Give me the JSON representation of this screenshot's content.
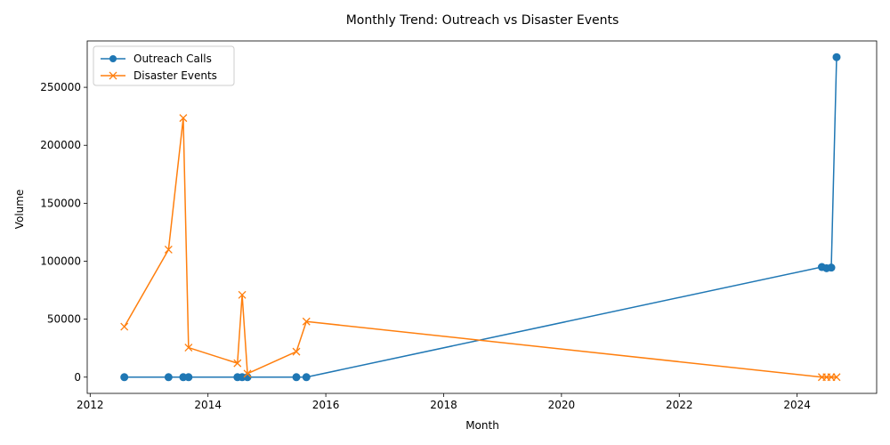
{
  "chart_data": {
    "type": "line",
    "title": "Monthly Trend: Outreach vs Disaster Events",
    "xlabel": "Month",
    "ylabel": "Volume",
    "xlim": [
      2011.95,
      2025.35
    ],
    "ylim": [
      -14000,
      290000
    ],
    "x_ticks": [
      2012,
      2014,
      2016,
      2018,
      2020,
      2022,
      2024
    ],
    "y_ticks": [
      0,
      50000,
      100000,
      150000,
      200000,
      250000
    ],
    "legend_position": "upper-left",
    "series": [
      {
        "name": "Outreach Calls",
        "color": "#1f77b4",
        "marker": "circle",
        "x": [
          2012.58,
          2013.33,
          2013.58,
          2013.67,
          2014.5,
          2014.58,
          2014.67,
          2015.5,
          2015.67,
          2024.42,
          2024.5,
          2024.58,
          2024.67
        ],
        "y": [
          0,
          0,
          0,
          0,
          0,
          0,
          0,
          0,
          0,
          95000,
          94000,
          94500,
          276000
        ]
      },
      {
        "name": "Disaster Events",
        "color": "#ff7f0e",
        "marker": "x",
        "x": [
          2012.58,
          2013.33,
          2013.58,
          2013.67,
          2014.5,
          2014.58,
          2014.67,
          2015.5,
          2015.67,
          2024.42,
          2024.5,
          2024.58,
          2024.67
        ],
        "y": [
          43500,
          110000,
          223500,
          25500,
          12000,
          71000,
          3000,
          22000,
          48000,
          0,
          0,
          0,
          0
        ]
      }
    ]
  }
}
